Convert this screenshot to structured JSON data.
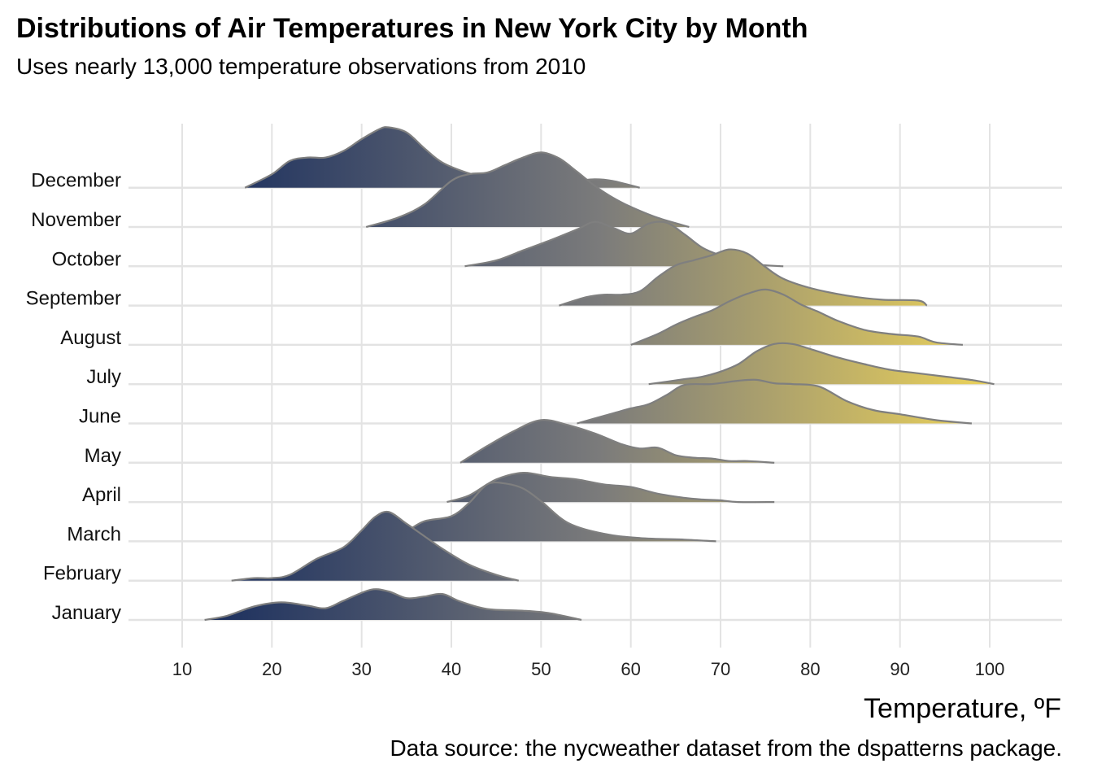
{
  "chart_data": {
    "type": "ridgeline",
    "title": "Distributions of Air Temperatures in New York City by Month",
    "subtitle": "Uses nearly 13,000 temperature observations from 2010",
    "xlabel": "Temperature, ºF",
    "ylabel": "",
    "caption": "Data source: the nycweather dataset from the dspatterns package.",
    "xlim": [
      4,
      108
    ],
    "x_ticks": [
      10,
      20,
      30,
      40,
      50,
      60,
      70,
      80,
      90,
      100
    ],
    "color_scale": {
      "low": "#1b2f5e",
      "mid": "#7b7b7b",
      "high": "#ebd25a",
      "domain": [
        13,
        100
      ]
    },
    "outline_color": "#7f7f7f",
    "grid": true,
    "series": [
      {
        "name": "January",
        "density": [
          [
            12.5,
            0
          ],
          [
            15,
            0.05
          ],
          [
            18,
            0.16
          ],
          [
            21,
            0.21
          ],
          [
            24,
            0.17
          ],
          [
            26,
            0.14
          ],
          [
            28,
            0.23
          ],
          [
            31,
            0.36
          ],
          [
            33,
            0.34
          ],
          [
            35,
            0.26
          ],
          [
            37,
            0.28
          ],
          [
            39,
            0.31
          ],
          [
            41,
            0.22
          ],
          [
            44,
            0.13
          ],
          [
            48,
            0.11
          ],
          [
            51,
            0.08
          ],
          [
            54.5,
            0
          ]
        ]
      },
      {
        "name": "February",
        "density": [
          [
            15.5,
            0
          ],
          [
            18,
            0.03
          ],
          [
            20,
            0.03
          ],
          [
            22,
            0.07
          ],
          [
            25,
            0.26
          ],
          [
            28,
            0.4
          ],
          [
            30,
            0.6
          ],
          [
            31.5,
            0.76
          ],
          [
            33,
            0.82
          ],
          [
            35,
            0.68
          ],
          [
            37,
            0.53
          ],
          [
            39,
            0.38
          ],
          [
            42,
            0.19
          ],
          [
            45,
            0.07
          ],
          [
            47.5,
            0
          ]
        ]
      },
      {
        "name": "March",
        "density": [
          [
            32.5,
            0
          ],
          [
            35,
            0.12
          ],
          [
            37,
            0.24
          ],
          [
            40,
            0.3
          ],
          [
            42,
            0.46
          ],
          [
            44,
            0.68
          ],
          [
            46,
            0.69
          ],
          [
            48,
            0.63
          ],
          [
            50,
            0.48
          ],
          [
            53,
            0.22
          ],
          [
            57,
            0.09
          ],
          [
            61,
            0.04
          ],
          [
            66,
            0.02
          ],
          [
            69.5,
            0
          ]
        ]
      },
      {
        "name": "April",
        "density": [
          [
            39.5,
            0
          ],
          [
            42,
            0.08
          ],
          [
            45,
            0.27
          ],
          [
            48,
            0.35
          ],
          [
            51,
            0.3
          ],
          [
            54,
            0.27
          ],
          [
            57,
            0.21
          ],
          [
            60,
            0.18
          ],
          [
            63,
            0.1
          ],
          [
            66,
            0.05
          ],
          [
            68,
            0.03
          ],
          [
            70,
            0.02
          ],
          [
            72,
            0
          ],
          [
            76,
            0
          ]
        ]
      },
      {
        "name": "May",
        "density": [
          [
            41,
            0
          ],
          [
            44,
            0.2
          ],
          [
            47,
            0.38
          ],
          [
            50,
            0.51
          ],
          [
            53,
            0.45
          ],
          [
            56,
            0.35
          ],
          [
            59,
            0.22
          ],
          [
            61,
            0.17
          ],
          [
            63,
            0.18
          ],
          [
            65,
            0.09
          ],
          [
            67,
            0.06
          ],
          [
            69,
            0.05
          ],
          [
            71,
            0.02
          ],
          [
            73,
            0.02
          ],
          [
            76,
            0
          ]
        ]
      },
      {
        "name": "June",
        "density": [
          [
            54,
            0
          ],
          [
            57,
            0.09
          ],
          [
            60,
            0.18
          ],
          [
            62,
            0.23
          ],
          [
            64,
            0.34
          ],
          [
            66,
            0.46
          ],
          [
            69,
            0.47
          ],
          [
            72,
            0.51
          ],
          [
            74,
            0.52
          ],
          [
            76,
            0.48
          ],
          [
            78,
            0.47
          ],
          [
            81,
            0.44
          ],
          [
            84,
            0.27
          ],
          [
            87,
            0.16
          ],
          [
            90,
            0.11
          ],
          [
            94,
            0.04
          ],
          [
            98,
            0
          ]
        ]
      },
      {
        "name": "July",
        "density": [
          [
            62,
            0
          ],
          [
            66,
            0.06
          ],
          [
            68,
            0.09
          ],
          [
            70,
            0.15
          ],
          [
            72,
            0.24
          ],
          [
            74,
            0.39
          ],
          [
            76,
            0.48
          ],
          [
            78,
            0.48
          ],
          [
            80,
            0.42
          ],
          [
            83,
            0.32
          ],
          [
            86,
            0.24
          ],
          [
            89,
            0.17
          ],
          [
            92,
            0.13
          ],
          [
            95,
            0.09
          ],
          [
            98,
            0.05
          ],
          [
            100.5,
            0
          ]
        ]
      },
      {
        "name": "August",
        "density": [
          [
            60,
            0
          ],
          [
            63,
            0.13
          ],
          [
            65,
            0.24
          ],
          [
            67,
            0.33
          ],
          [
            69,
            0.41
          ],
          [
            71,
            0.52
          ],
          [
            73,
            0.61
          ],
          [
            75,
            0.66
          ],
          [
            77,
            0.6
          ],
          [
            79,
            0.48
          ],
          [
            81,
            0.39
          ],
          [
            83,
            0.29
          ],
          [
            86,
            0.18
          ],
          [
            89,
            0.13
          ],
          [
            92,
            0.1
          ],
          [
            94,
            0.03
          ],
          [
            97,
            0
          ]
        ]
      },
      {
        "name": "September",
        "density": [
          [
            52,
            0
          ],
          [
            55,
            0.1
          ],
          [
            57,
            0.13
          ],
          [
            59,
            0.13
          ],
          [
            61,
            0.17
          ],
          [
            63,
            0.34
          ],
          [
            65,
            0.48
          ],
          [
            67,
            0.54
          ],
          [
            69,
            0.6
          ],
          [
            71,
            0.67
          ],
          [
            73,
            0.62
          ],
          [
            75,
            0.46
          ],
          [
            77,
            0.32
          ],
          [
            80,
            0.21
          ],
          [
            84,
            0.12
          ],
          [
            88,
            0.07
          ],
          [
            92,
            0.06
          ],
          [
            93,
            0
          ]
        ]
      },
      {
        "name": "October",
        "density": [
          [
            41.5,
            0
          ],
          [
            45,
            0.07
          ],
          [
            48,
            0.19
          ],
          [
            51,
            0.31
          ],
          [
            54,
            0.44
          ],
          [
            56,
            0.53
          ],
          [
            58,
            0.46
          ],
          [
            60,
            0.39
          ],
          [
            62,
            0.51
          ],
          [
            64,
            0.52
          ],
          [
            66,
            0.38
          ],
          [
            68,
            0.22
          ],
          [
            70,
            0.13
          ],
          [
            72,
            0.07
          ],
          [
            74,
            0.02
          ],
          [
            77,
            0
          ]
        ]
      },
      {
        "name": "November",
        "density": [
          [
            30.5,
            0
          ],
          [
            34,
            0.11
          ],
          [
            37,
            0.27
          ],
          [
            40,
            0.55
          ],
          [
            42,
            0.63
          ],
          [
            44,
            0.65
          ],
          [
            46,
            0.74
          ],
          [
            48,
            0.83
          ],
          [
            50,
            0.89
          ],
          [
            52,
            0.82
          ],
          [
            54,
            0.66
          ],
          [
            56,
            0.49
          ],
          [
            58,
            0.35
          ],
          [
            60,
            0.24
          ],
          [
            63,
            0.11
          ],
          [
            66.5,
            0
          ]
        ]
      },
      {
        "name": "December",
        "density": [
          [
            17,
            0
          ],
          [
            20,
            0.16
          ],
          [
            22,
            0.32
          ],
          [
            24,
            0.36
          ],
          [
            26,
            0.36
          ],
          [
            28,
            0.44
          ],
          [
            30,
            0.58
          ],
          [
            32,
            0.7
          ],
          [
            33,
            0.72
          ],
          [
            35,
            0.66
          ],
          [
            37,
            0.47
          ],
          [
            39,
            0.3
          ],
          [
            42,
            0.17
          ],
          [
            45,
            0.09
          ],
          [
            48,
            0.06
          ],
          [
            51,
            0.05
          ],
          [
            54,
            0.08
          ],
          [
            56,
            0.1
          ],
          [
            58,
            0.08
          ],
          [
            61,
            0
          ]
        ]
      }
    ]
  }
}
